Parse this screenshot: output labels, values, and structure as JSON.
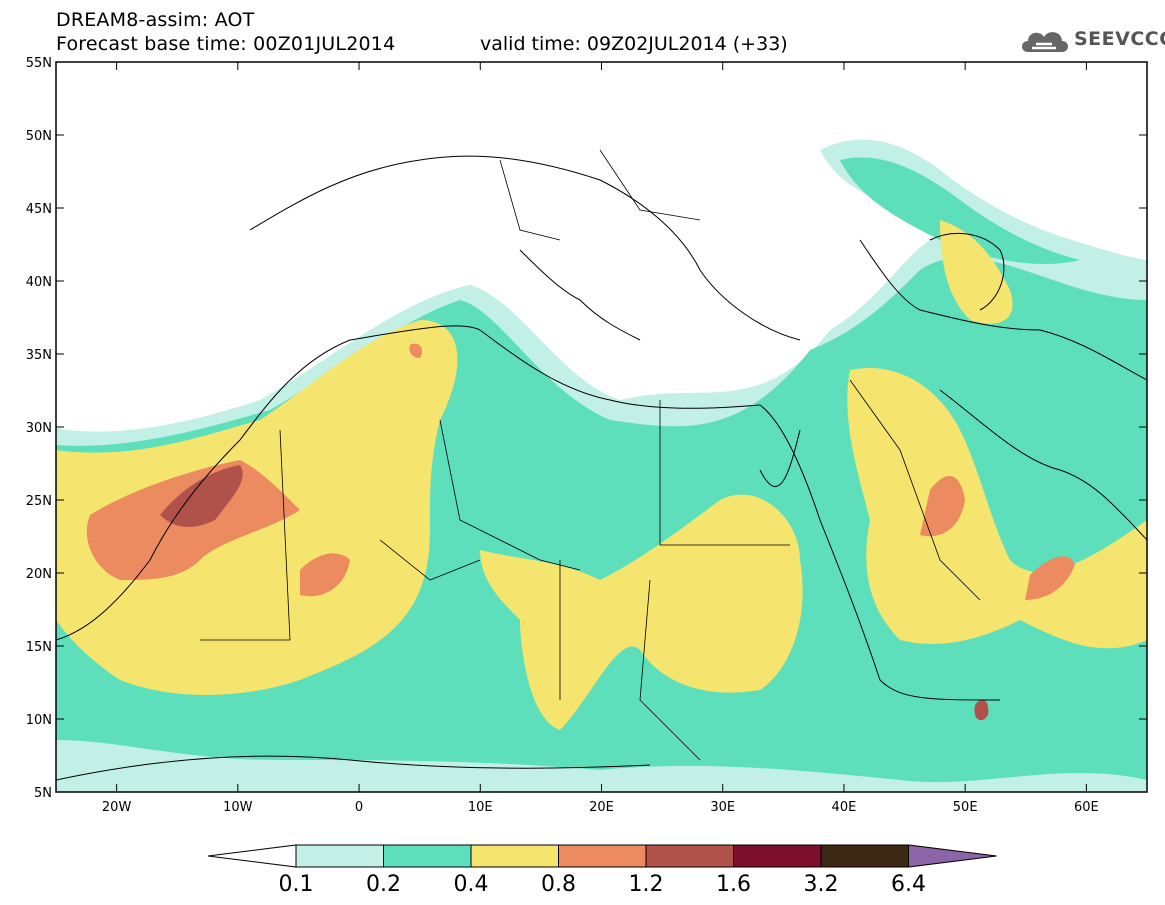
{
  "header": {
    "title": "DREAM8-assim: AOT",
    "base_time": "Forecast base time: 00Z01JUL2014",
    "valid_time": "valid time: 09Z02JUL2014 (+33)"
  },
  "logo": {
    "text": "SEEVCCC",
    "icon": "cloud-icon"
  },
  "map": {
    "lon_range": [
      -25,
      65
    ],
    "lat_range": [
      5,
      55
    ],
    "lon_ticks": [
      "20W",
      "10W",
      "0",
      "10E",
      "20E",
      "30E",
      "40E",
      "50E",
      "60E"
    ],
    "lat_ticks": [
      "5N",
      "10N",
      "15N",
      "20N",
      "25N",
      "30N",
      "35N",
      "40N",
      "45N",
      "50N",
      "55N"
    ]
  },
  "colorbar": {
    "labels": [
      "0.1",
      "0.2",
      "0.4",
      "0.8",
      "1.2",
      "1.6",
      "3.2",
      "6.4"
    ],
    "colors": [
      "#ffffff",
      "#c2efe6",
      "#5edfbc",
      "#f5e46e",
      "#ec8a60",
      "#b0524a",
      "#7e0f2c",
      "#3d2814",
      "#8d64a8"
    ]
  }
}
